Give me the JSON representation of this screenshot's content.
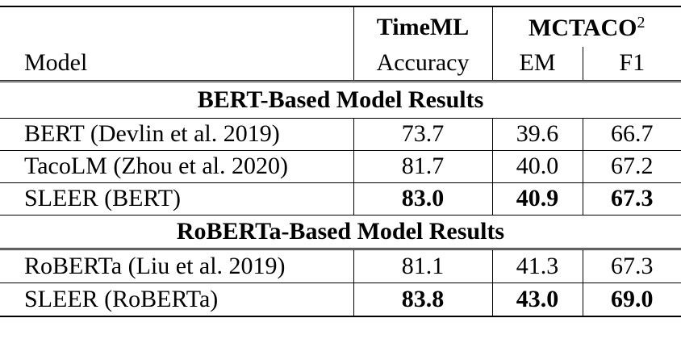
{
  "table": {
    "header": {
      "groups": [
        {
          "label": "TimeML"
        },
        {
          "label": "MCTACO",
          "footnote": "2"
        }
      ],
      "columns": [
        "Model",
        "Accuracy",
        "EM",
        "F1"
      ]
    },
    "sections": [
      {
        "title": "BERT-Based Model Results",
        "rows": [
          {
            "cells": [
              "BERT (Devlin et al. 2019)",
              "73.7",
              "39.6",
              "66.7"
            ],
            "bold": false
          },
          {
            "cells": [
              "TacoLM (Zhou et al. 2020)",
              "81.7",
              "40.0",
              "67.2"
            ],
            "bold": false
          },
          {
            "cells": [
              "SLEER (BERT)",
              "83.0",
              "40.9",
              "67.3"
            ],
            "bold": true
          }
        ]
      },
      {
        "title": "RoBERTa-Based Model Results",
        "rows": [
          {
            "cells": [
              "RoBERTa (Liu et al. 2019)",
              "81.1",
              "41.3",
              "67.3"
            ],
            "bold": false
          },
          {
            "cells": [
              "SLEER (RoBERTa)",
              "83.8",
              "43.0",
              "69.0"
            ],
            "bold": true
          }
        ]
      }
    ]
  }
}
